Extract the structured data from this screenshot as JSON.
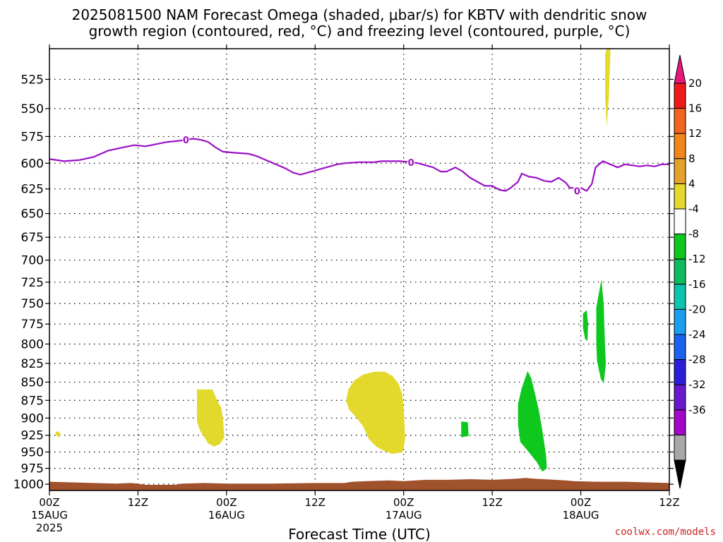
{
  "chart_data": {
    "type": "heatmap",
    "title": [
      "2025081500 NAM Forecast Omega (shaded, μbar/s) for KBTV with dendritic snow",
      "growth region (contoured, red, °C) and freezing level (contoured, purple, °C)"
    ],
    "xlabel": "Forecast Time (UTC)",
    "credit": "coolwx.com/models",
    "x_range_hours": [
      0,
      84
    ],
    "x_ticks": [
      {
        "h": 0,
        "top": "00Z",
        "mid": "15AUG",
        "bottom": "2025"
      },
      {
        "h": 12,
        "top": "12Z",
        "mid": "",
        "bottom": ""
      },
      {
        "h": 24,
        "top": "00Z",
        "mid": "16AUG",
        "bottom": ""
      },
      {
        "h": 36,
        "top": "12Z",
        "mid": "",
        "bottom": ""
      },
      {
        "h": 48,
        "top": "00Z",
        "mid": "17AUG",
        "bottom": ""
      },
      {
        "h": 60,
        "top": "12Z",
        "mid": "",
        "bottom": ""
      },
      {
        "h": 72,
        "top": "00Z",
        "mid": "18AUG",
        "bottom": ""
      },
      {
        "h": 84,
        "top": "12Z",
        "mid": "",
        "bottom": ""
      }
    ],
    "y_range_hpa": [
      1010,
      500
    ],
    "y_scale": "log-pressure",
    "y_ticks": [
      "525",
      "550",
      "575",
      "600",
      "625",
      "650",
      "675",
      "700",
      "725",
      "750",
      "775",
      "800",
      "825",
      "850",
      "875",
      "900",
      "925",
      "950",
      "975",
      "1000"
    ],
    "colorbar": {
      "labels": [
        "20",
        "16",
        "12",
        "8",
        "4",
        "-4",
        "-8",
        "-12",
        "-16",
        "-20",
        "-24",
        "-28",
        "-32",
        "-36"
      ],
      "colors": [
        "#ee1a1a",
        "#f06620",
        "#f3861a",
        "#e3a22c",
        "#e3d92c",
        "#ffffff",
        "#0ec81e",
        "#0dba5f",
        "#0ec4b0",
        "#1a9ef0",
        "#1a62f0",
        "#2a20d8",
        "#6a18cc",
        "#a008c6",
        "#a8a8a8"
      ],
      "top_arrow_color": "#e6187a",
      "bottom_arrow_color": "#000000"
    },
    "freezing_level": {
      "label": "0",
      "color": "#9b10c6",
      "label_points": [
        [
          18.5,
          578
        ],
        [
          49,
          599
        ],
        [
          71.5,
          627
        ]
      ],
      "points": [
        [
          0,
          596
        ],
        [
          2,
          598
        ],
        [
          4,
          597
        ],
        [
          6,
          594
        ],
        [
          8,
          588
        ],
        [
          10,
          585
        ],
        [
          11.5,
          583
        ],
        [
          13,
          584
        ],
        [
          14.5,
          582
        ],
        [
          16,
          580
        ],
        [
          17.5,
          579
        ],
        [
          18.5,
          578
        ],
        [
          19.5,
          577
        ],
        [
          20.5,
          578
        ],
        [
          21.5,
          580
        ],
        [
          22.5,
          585
        ],
        [
          23.5,
          589
        ],
        [
          25,
          590
        ],
        [
          27,
          591
        ],
        [
          28,
          593
        ],
        [
          29,
          596
        ],
        [
          30,
          599
        ],
        [
          31,
          602
        ],
        [
          32,
          605
        ],
        [
          33,
          609
        ],
        [
          34,
          611
        ],
        [
          35,
          609
        ],
        [
          36,
          607
        ],
        [
          37,
          605
        ],
        [
          38,
          603
        ],
        [
          39,
          601
        ],
        [
          40,
          600
        ],
        [
          42,
          599
        ],
        [
          44,
          599
        ],
        [
          45,
          598
        ],
        [
          46.5,
          598
        ],
        [
          47.5,
          598
        ],
        [
          49,
          599
        ],
        [
          50,
          600
        ],
        [
          51,
          602
        ],
        [
          52,
          604
        ],
        [
          53,
          608
        ],
        [
          53.8,
          608
        ],
        [
          55,
          604
        ],
        [
          56,
          608
        ],
        [
          57,
          614
        ],
        [
          58,
          618
        ],
        [
          59,
          622
        ],
        [
          60,
          622
        ],
        [
          61,
          626
        ],
        [
          61.8,
          627
        ],
        [
          62.5,
          624
        ],
        [
          63.5,
          618
        ],
        [
          64,
          610
        ],
        [
          65,
          613
        ],
        [
          66,
          614
        ],
        [
          67,
          617
        ],
        [
          68,
          618
        ],
        [
          69,
          614
        ],
        [
          70,
          619
        ],
        [
          70.5,
          624
        ],
        [
          72,
          624
        ],
        [
          72.8,
          627
        ],
        [
          73.5,
          620
        ],
        [
          74,
          604
        ],
        [
          75,
          598
        ],
        [
          76,
          601
        ],
        [
          77,
          604
        ],
        [
          78,
          601
        ],
        [
          79,
          602
        ],
        [
          80,
          603
        ],
        [
          81,
          602
        ],
        [
          82,
          603
        ],
        [
          83,
          601
        ],
        [
          84,
          601
        ]
      ]
    },
    "regions": [
      {
        "label": "4",
        "color": "#e3d92c",
        "points": [
          [
            75.5,
            500
          ],
          [
            76,
            500
          ],
          [
            76,
            505
          ],
          [
            75.8,
            540
          ],
          [
            75.5,
            566
          ],
          [
            75.3,
            540
          ],
          [
            75.3,
            505
          ]
        ]
      },
      {
        "label": "4",
        "color": "#e3d92c",
        "points": [
          [
            0.8,
            921
          ],
          [
            1.2,
            919
          ],
          [
            1.5,
            923
          ],
          [
            1.3,
            928
          ],
          [
            0.9,
            925
          ]
        ]
      },
      {
        "label": "4",
        "color": "#e3d92c",
        "points": [
          [
            20,
            860
          ],
          [
            22.1,
            860
          ],
          [
            22.6,
            872
          ],
          [
            23.3,
            886
          ],
          [
            23.5,
            900
          ],
          [
            23.6,
            912
          ],
          [
            23.7,
            928
          ],
          [
            23.1,
            938
          ],
          [
            22.3,
            942
          ],
          [
            21.5,
            937
          ],
          [
            21.0,
            928
          ],
          [
            20.4,
            918
          ],
          [
            20.0,
            905
          ]
        ]
      },
      {
        "label": "4",
        "color": "#e3d92c",
        "points": [
          [
            40.5,
            860
          ],
          [
            41.3,
            848
          ],
          [
            42.5,
            840
          ],
          [
            44.0,
            836
          ],
          [
            45.5,
            836
          ],
          [
            46.5,
            842
          ],
          [
            47.3,
            852
          ],
          [
            47.8,
            866
          ],
          [
            48.0,
            885
          ],
          [
            48.1,
            905
          ],
          [
            48.2,
            930
          ],
          [
            47.9,
            950
          ],
          [
            46.5,
            953
          ],
          [
            45.3,
            948
          ],
          [
            44.3,
            942
          ],
          [
            43.3,
            931
          ],
          [
            42.5,
            912
          ],
          [
            41.5,
            898
          ],
          [
            40.6,
            888
          ],
          [
            40.2,
            876
          ]
        ]
      },
      {
        "label": "-8",
        "color": "#0ec81e",
        "points": [
          [
            55.8,
            905
          ],
          [
            56.7,
            906
          ],
          [
            56.8,
            926
          ],
          [
            55.8,
            928
          ]
        ]
      },
      {
        "label": "-8",
        "color": "#0ec81e",
        "points": [
          [
            63.5,
            880
          ],
          [
            64.0,
            858
          ],
          [
            64.8,
            835
          ],
          [
            65.3,
            845
          ],
          [
            65.8,
            866
          ],
          [
            66.3,
            888
          ],
          [
            66.7,
            912
          ],
          [
            67.0,
            933
          ],
          [
            67.3,
            955
          ],
          [
            67.4,
            975
          ],
          [
            66.8,
            980
          ],
          [
            66.0,
            965
          ],
          [
            64.8,
            948
          ],
          [
            63.8,
            935
          ],
          [
            63.5,
            910
          ]
        ]
      },
      {
        "label": "-8",
        "color": "#0ec81e",
        "points": [
          [
            74.1,
            755
          ],
          [
            74.4,
            740
          ],
          [
            74.8,
            722
          ],
          [
            75.1,
            750
          ],
          [
            75.2,
            778
          ],
          [
            75.3,
            805
          ],
          [
            75.4,
            826
          ],
          [
            75.1,
            852
          ],
          [
            74.7,
            845
          ],
          [
            74.2,
            822
          ],
          [
            74.1,
            800
          ],
          [
            74.1,
            780
          ]
        ]
      },
      {
        "label": "-8",
        "color": "#0ec81e",
        "points": [
          [
            72.3,
            762
          ],
          [
            72.8,
            758
          ],
          [
            73.0,
            775
          ],
          [
            72.9,
            796
          ],
          [
            72.6,
            794
          ],
          [
            72.3,
            780
          ]
        ]
      }
    ],
    "terrain": {
      "color": "#a0522d",
      "points": [
        [
          0,
          996
        ],
        [
          3,
          997
        ],
        [
          6,
          998
        ],
        [
          9,
          999
        ],
        [
          11,
          998
        ],
        [
          12,
          999
        ],
        [
          13,
          1001
        ],
        [
          17,
          1001
        ],
        [
          18,
          999
        ],
        [
          21,
          998
        ],
        [
          24,
          999
        ],
        [
          30,
          999
        ],
        [
          36,
          998
        ],
        [
          40,
          998
        ],
        [
          41,
          996
        ],
        [
          43,
          995
        ],
        [
          46,
          994
        ],
        [
          48,
          995
        ],
        [
          51,
          993
        ],
        [
          54,
          993
        ],
        [
          57,
          992
        ],
        [
          60,
          993
        ],
        [
          62,
          992
        ],
        [
          63.5,
          991
        ],
        [
          64.5,
          990
        ],
        [
          65.5,
          991
        ],
        [
          67,
          992
        ],
        [
          70,
          994
        ],
        [
          71,
          995
        ],
        [
          74,
          996
        ],
        [
          78,
          996
        ],
        [
          81,
          997
        ],
        [
          84,
          998
        ]
      ]
    }
  }
}
